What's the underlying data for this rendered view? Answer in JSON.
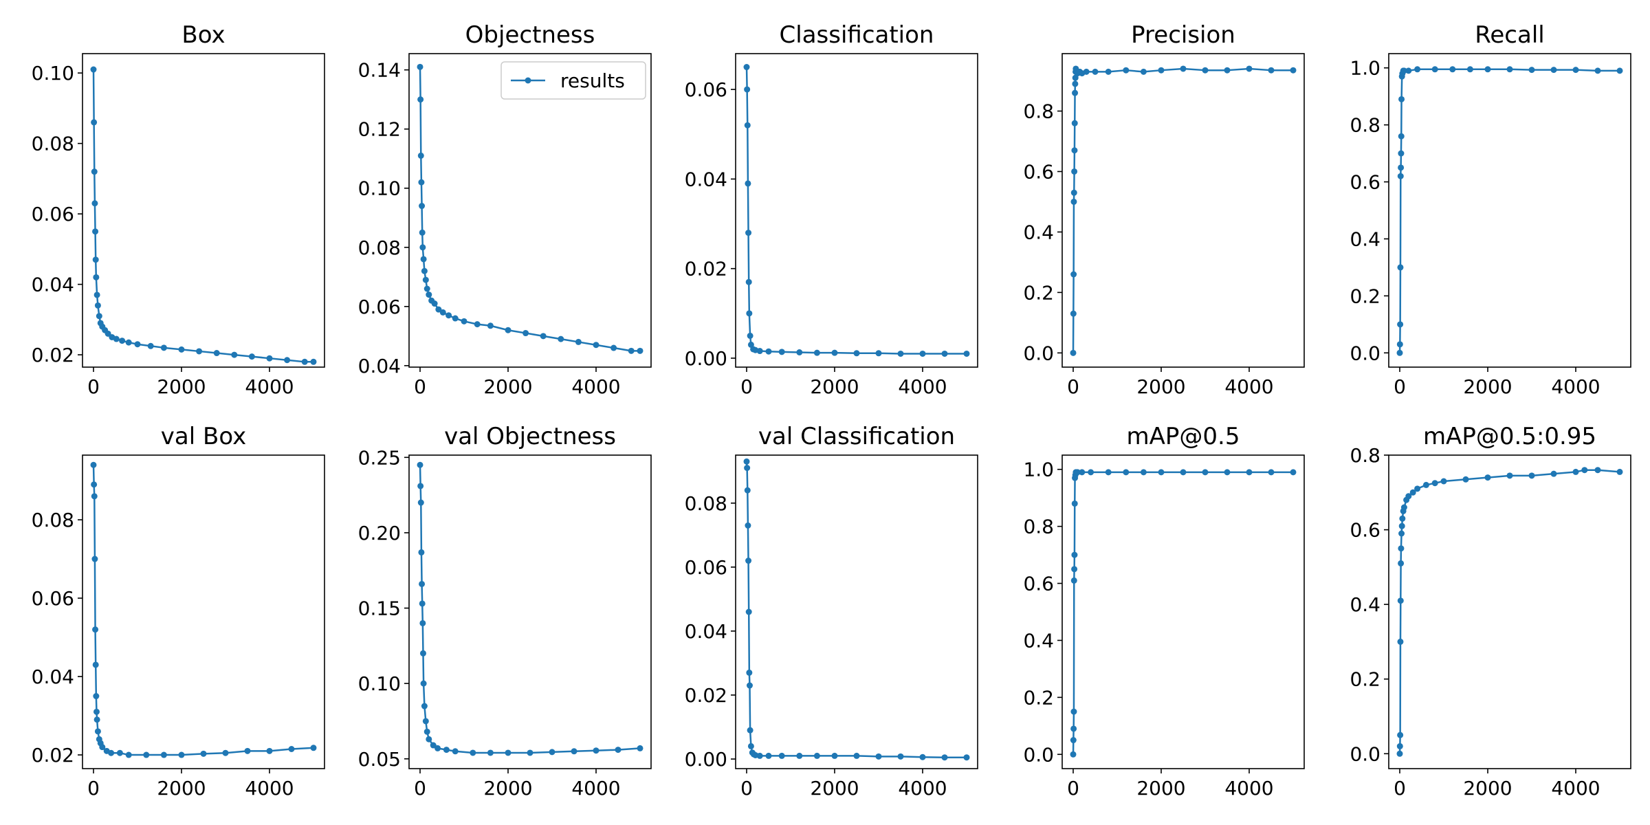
{
  "figure": {
    "background": "#ffffff",
    "line_color": "#1f77b4",
    "legend_label": "results"
  },
  "chart_data": [
    {
      "type": "line",
      "title": "Box",
      "xlim": [
        -250,
        5250
      ],
      "ylim": [
        0.0165,
        0.1055
      ],
      "xticks": [
        0,
        2000,
        4000
      ],
      "yticks": [
        0.02,
        0.04,
        0.06,
        0.08,
        0.1
      ],
      "ytick_labels": [
        "0.02",
        "0.04",
        "0.06",
        "0.08",
        "0.10"
      ],
      "legend": "none",
      "series": [
        {
          "name": "results",
          "x": [
            0,
            10,
            20,
            30,
            40,
            50,
            60,
            80,
            100,
            130,
            160,
            200,
            260,
            330,
            420,
            520,
            650,
            800,
            1000,
            1300,
            1600,
            2000,
            2400,
            2800,
            3200,
            3600,
            4000,
            4400,
            4800,
            5000
          ],
          "y": [
            0.101,
            0.086,
            0.072,
            0.063,
            0.055,
            0.047,
            0.042,
            0.037,
            0.034,
            0.031,
            0.029,
            0.028,
            0.027,
            0.026,
            0.025,
            0.0245,
            0.024,
            0.0235,
            0.023,
            0.0225,
            0.022,
            0.0215,
            0.021,
            0.0205,
            0.02,
            0.0195,
            0.019,
            0.0185,
            0.018,
            0.018
          ]
        }
      ]
    },
    {
      "type": "line",
      "title": "Objectness",
      "xlim": [
        -250,
        5250
      ],
      "ylim": [
        0.0395,
        0.1455
      ],
      "xticks": [
        0,
        2000,
        4000
      ],
      "yticks": [
        0.04,
        0.06,
        0.08,
        0.1,
        0.12,
        0.14
      ],
      "ytick_labels": [
        "0.04",
        "0.06",
        "0.08",
        "0.10",
        "0.12",
        "0.14"
      ],
      "legend": "upper right",
      "series": [
        {
          "name": "results",
          "x": [
            0,
            10,
            20,
            30,
            40,
            50,
            60,
            80,
            100,
            130,
            160,
            200,
            260,
            330,
            420,
            520,
            650,
            800,
            1000,
            1300,
            1600,
            2000,
            2400,
            2800,
            3200,
            3600,
            4000,
            4400,
            4800,
            5000
          ],
          "y": [
            0.141,
            0.13,
            0.111,
            0.102,
            0.094,
            0.085,
            0.08,
            0.076,
            0.072,
            0.069,
            0.066,
            0.064,
            0.062,
            0.061,
            0.059,
            0.058,
            0.057,
            0.056,
            0.055,
            0.054,
            0.0535,
            0.052,
            0.051,
            0.05,
            0.049,
            0.048,
            0.047,
            0.046,
            0.045,
            0.045
          ]
        }
      ]
    },
    {
      "type": "line",
      "title": "Classification",
      "xlim": [
        -250,
        5250
      ],
      "ylim": [
        -0.002,
        0.068
      ],
      "xticks": [
        0,
        2000,
        4000
      ],
      "yticks": [
        0.0,
        0.02,
        0.04,
        0.06
      ],
      "ytick_labels": [
        "0.00",
        "0.02",
        "0.04",
        "0.06"
      ],
      "legend": "none",
      "series": [
        {
          "name": "results",
          "x": [
            0,
            10,
            20,
            30,
            40,
            50,
            60,
            80,
            100,
            150,
            200,
            300,
            500,
            800,
            1200,
            1600,
            2000,
            2500,
            3000,
            3500,
            4000,
            4500,
            5000
          ],
          "y": [
            0.065,
            0.06,
            0.052,
            0.039,
            0.028,
            0.017,
            0.01,
            0.005,
            0.003,
            0.002,
            0.0018,
            0.0016,
            0.0015,
            0.0014,
            0.0013,
            0.0012,
            0.0012,
            0.0011,
            0.0011,
            0.001,
            0.001,
            0.001,
            0.001
          ]
        }
      ]
    },
    {
      "type": "line",
      "title": "Precision",
      "xlim": [
        -250,
        5250
      ],
      "ylim": [
        -0.047,
        0.99
      ],
      "xticks": [
        0,
        2000,
        4000
      ],
      "yticks": [
        0.0,
        0.2,
        0.4,
        0.6,
        0.8
      ],
      "ytick_labels": [
        "0.0",
        "0.2",
        "0.4",
        "0.6",
        "0.8"
      ],
      "legend": "none",
      "series": [
        {
          "name": "results",
          "x": [
            0,
            5,
            10,
            15,
            20,
            25,
            30,
            35,
            40,
            45,
            50,
            55,
            60,
            70,
            80,
            100,
            150,
            200,
            300,
            500,
            800,
            1200,
            1600,
            2000,
            2500,
            3000,
            3500,
            4000,
            4500,
            5000
          ],
          "y": [
            0.0,
            0.13,
            0.26,
            0.5,
            0.53,
            0.6,
            0.67,
            0.76,
            0.86,
            0.89,
            0.91,
            0.93,
            0.94,
            0.935,
            0.93,
            0.925,
            0.93,
            0.925,
            0.93,
            0.93,
            0.93,
            0.935,
            0.93,
            0.935,
            0.94,
            0.935,
            0.935,
            0.94,
            0.935,
            0.935
          ]
        }
      ]
    },
    {
      "type": "line",
      "title": "Recall",
      "xlim": [
        -250,
        5250
      ],
      "ylim": [
        -0.05,
        1.05
      ],
      "xticks": [
        0,
        2000,
        4000
      ],
      "yticks": [
        0.0,
        0.2,
        0.4,
        0.6,
        0.8,
        1.0
      ],
      "ytick_labels": [
        "0.0",
        "0.2",
        "0.4",
        "0.6",
        "0.8",
        "1.0"
      ],
      "legend": "none",
      "series": [
        {
          "name": "results",
          "x": [
            0,
            5,
            10,
            15,
            20,
            25,
            30,
            35,
            40,
            50,
            60,
            80,
            100,
            200,
            400,
            800,
            1200,
            1600,
            2000,
            2500,
            3000,
            3500,
            4000,
            4500,
            5000
          ],
          "y": [
            0.0,
            0.03,
            0.1,
            0.3,
            0.62,
            0.65,
            0.7,
            0.76,
            0.89,
            0.97,
            0.98,
            0.99,
            0.99,
            0.99,
            0.995,
            0.995,
            0.995,
            0.995,
            0.995,
            0.995,
            0.993,
            0.993,
            0.993,
            0.99,
            0.99
          ]
        }
      ]
    },
    {
      "type": "line",
      "title": "val Box",
      "xlim": [
        -250,
        5250
      ],
      "ylim": [
        0.0165,
        0.0965
      ],
      "xticks": [
        0,
        2000,
        4000
      ],
      "yticks": [
        0.02,
        0.04,
        0.06,
        0.08
      ],
      "ytick_labels": [
        "0.02",
        "0.04",
        "0.06",
        "0.08"
      ],
      "legend": "none",
      "series": [
        {
          "name": "results",
          "x": [
            0,
            10,
            20,
            30,
            40,
            50,
            60,
            70,
            80,
            100,
            130,
            160,
            200,
            300,
            400,
            600,
            800,
            1200,
            1600,
            2000,
            2500,
            3000,
            3500,
            4000,
            4500,
            5000
          ],
          "y": [
            0.094,
            0.089,
            0.086,
            0.07,
            0.052,
            0.043,
            0.035,
            0.031,
            0.029,
            0.026,
            0.024,
            0.023,
            0.022,
            0.021,
            0.0205,
            0.0205,
            0.02,
            0.02,
            0.02,
            0.02,
            0.0203,
            0.0205,
            0.021,
            0.021,
            0.0215,
            0.0218
          ]
        }
      ]
    },
    {
      "type": "line",
      "title": "val Objectness",
      "xlim": [
        -250,
        5250
      ],
      "ylim": [
        0.0435,
        0.2515
      ],
      "xticks": [
        0,
        2000,
        4000
      ],
      "yticks": [
        0.05,
        0.1,
        0.15,
        0.2,
        0.25
      ],
      "ytick_labels": [
        "0.05",
        "0.10",
        "0.15",
        "0.20",
        "0.25"
      ],
      "legend": "none",
      "series": [
        {
          "name": "results",
          "x": [
            0,
            10,
            20,
            30,
            40,
            50,
            60,
            70,
            80,
            100,
            130,
            160,
            200,
            300,
            400,
            600,
            800,
            1200,
            1600,
            2000,
            2500,
            3000,
            3500,
            4000,
            4500,
            5000
          ],
          "y": [
            0.245,
            0.231,
            0.22,
            0.187,
            0.166,
            0.153,
            0.14,
            0.12,
            0.1,
            0.085,
            0.075,
            0.068,
            0.063,
            0.059,
            0.057,
            0.056,
            0.055,
            0.054,
            0.054,
            0.054,
            0.054,
            0.0545,
            0.055,
            0.0555,
            0.056,
            0.057
          ]
        }
      ]
    },
    {
      "type": "line",
      "title": "val Classification",
      "xlim": [
        -250,
        5250
      ],
      "ylim": [
        -0.003,
        0.095
      ],
      "xticks": [
        0,
        2000,
        4000
      ],
      "yticks": [
        0.0,
        0.02,
        0.04,
        0.06,
        0.08
      ],
      "ytick_labels": [
        "0.00",
        "0.02",
        "0.04",
        "0.06",
        "0.08"
      ],
      "legend": "none",
      "series": [
        {
          "name": "results",
          "x": [
            0,
            10,
            20,
            30,
            40,
            50,
            60,
            70,
            80,
            100,
            130,
            160,
            200,
            300,
            500,
            800,
            1200,
            1600,
            2000,
            2500,
            3000,
            3500,
            4000,
            4500,
            5000
          ],
          "y": [
            0.093,
            0.091,
            0.084,
            0.073,
            0.062,
            0.046,
            0.027,
            0.023,
            0.009,
            0.004,
            0.002,
            0.0015,
            0.0012,
            0.001,
            0.001,
            0.001,
            0.001,
            0.001,
            0.001,
            0.001,
            0.0008,
            0.0008,
            0.0006,
            0.0005,
            0.0005
          ]
        }
      ]
    },
    {
      "type": "line",
      "title": "mAP@0.5",
      "xlim": [
        -250,
        5250
      ],
      "ylim": [
        -0.05,
        1.05
      ],
      "xticks": [
        0,
        2000,
        4000
      ],
      "yticks": [
        0.0,
        0.2,
        0.4,
        0.6,
        0.8,
        1.0
      ],
      "ytick_labels": [
        "0.0",
        "0.2",
        "0.4",
        "0.6",
        "0.8",
        "1.0"
      ],
      "legend": "none",
      "series": [
        {
          "name": "results",
          "x": [
            0,
            5,
            10,
            15,
            20,
            25,
            30,
            35,
            40,
            50,
            60,
            80,
            100,
            200,
            400,
            800,
            1200,
            1600,
            2000,
            2500,
            3000,
            3500,
            4000,
            4500,
            5000
          ],
          "y": [
            0.0,
            0.05,
            0.09,
            0.15,
            0.61,
            0.65,
            0.7,
            0.88,
            0.97,
            0.98,
            0.99,
            0.99,
            0.99,
            0.99,
            0.99,
            0.99,
            0.99,
            0.99,
            0.99,
            0.99,
            0.99,
            0.99,
            0.99,
            0.99,
            0.99
          ]
        }
      ]
    },
    {
      "type": "line",
      "title": "mAP@0.5:0.95",
      "xlim": [
        -250,
        5250
      ],
      "ylim": [
        -0.04,
        0.8
      ],
      "xticks": [
        0,
        2000,
        4000
      ],
      "yticks": [
        0.0,
        0.2,
        0.4,
        0.6,
        0.8
      ],
      "ytick_labels": [
        "0.0",
        "0.2",
        "0.4",
        "0.6",
        "0.8"
      ],
      "legend": "none",
      "series": [
        {
          "name": "results",
          "x": [
            0,
            5,
            10,
            15,
            20,
            25,
            30,
            40,
            50,
            60,
            80,
            100,
            150,
            200,
            300,
            400,
            600,
            800,
            1000,
            1500,
            2000,
            2500,
            3000,
            3500,
            4000,
            4200,
            4500,
            5000
          ],
          "y": [
            0.0,
            0.02,
            0.05,
            0.3,
            0.41,
            0.51,
            0.55,
            0.59,
            0.61,
            0.63,
            0.65,
            0.66,
            0.68,
            0.69,
            0.7,
            0.71,
            0.72,
            0.725,
            0.73,
            0.735,
            0.74,
            0.745,
            0.745,
            0.75,
            0.755,
            0.76,
            0.76,
            0.755
          ]
        }
      ]
    }
  ]
}
